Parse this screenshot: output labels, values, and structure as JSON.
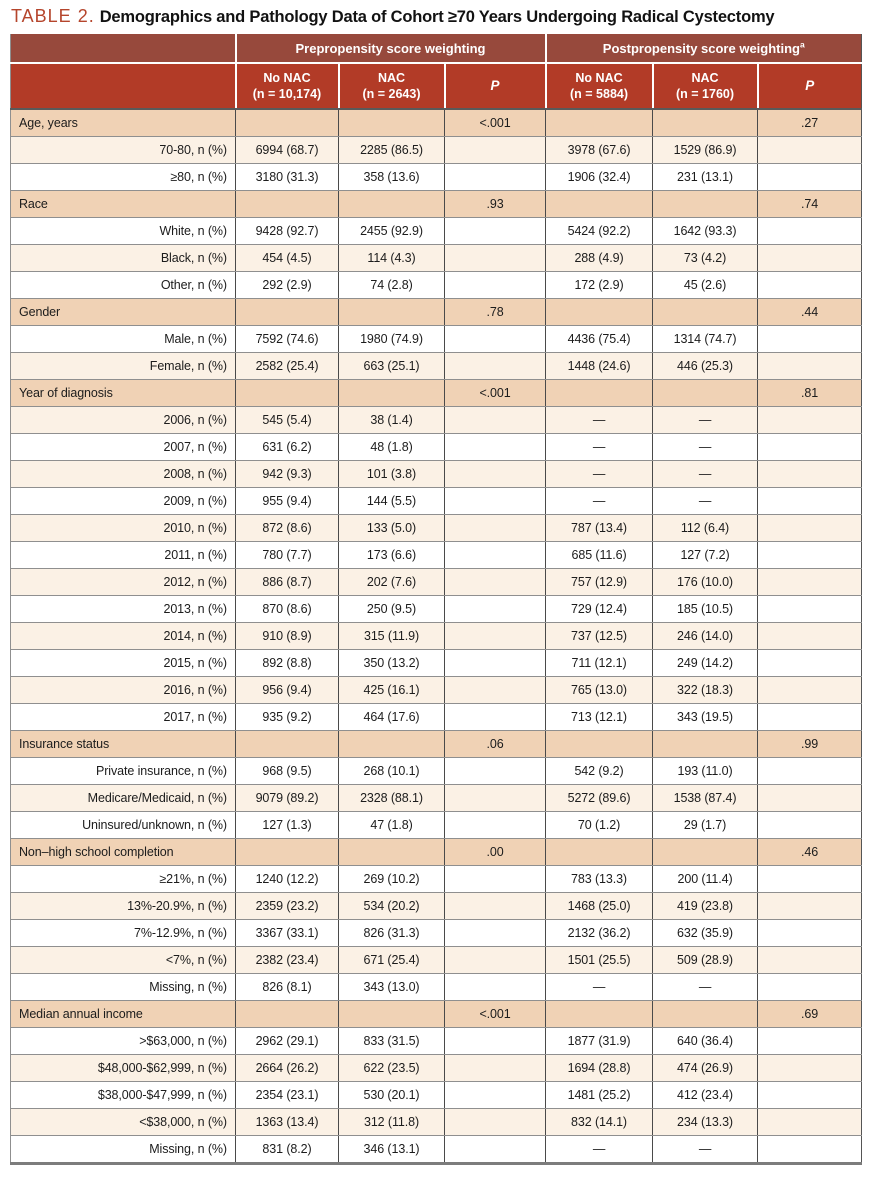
{
  "title": {
    "label": "TABLE 2.",
    "text": "Demographics and Pathology Data of Cohort ≥70 Years Undergoing Radical Cystectomy"
  },
  "colors": {
    "header_group_bg": "#97493c",
    "header_column_bg": "#b23b27",
    "category_row_bg": "#f0d2b5",
    "stripe_row_bg": "#fbf1e5",
    "title_accent": "#b5452c"
  },
  "header": {
    "groups": [
      {
        "label": "Prepropensity score weighting",
        "sup": ""
      },
      {
        "label": "Postpropensity score weighting",
        "sup": "a"
      }
    ],
    "columns": [
      {
        "line1": "No NAC",
        "line2": "(n = 10,174)"
      },
      {
        "line1": "NAC",
        "line2": "(n = 2643)"
      },
      {
        "line1": "P",
        "line2": ""
      },
      {
        "line1": "No NAC",
        "line2": "(n = 5884)"
      },
      {
        "line1": "NAC",
        "line2": "(n = 1760)"
      },
      {
        "line1": "P",
        "line2": ""
      }
    ]
  },
  "rows": [
    {
      "cat": true,
      "label": "Age, years",
      "cells": [
        "",
        "",
        "<.001",
        "",
        "",
        ".27"
      ]
    },
    {
      "cat": false,
      "label": "70-80, n (%)",
      "cells": [
        "6994 (68.7)",
        "2285 (86.5)",
        "",
        "3978 (67.6)",
        "1529 (86.9)",
        ""
      ]
    },
    {
      "cat": false,
      "label": "≥80, n (%)",
      "cells": [
        "3180 (31.3)",
        "358 (13.6)",
        "",
        "1906 (32.4)",
        "231 (13.1)",
        ""
      ]
    },
    {
      "cat": true,
      "label": "Race",
      "cells": [
        "",
        "",
        ".93",
        "",
        "",
        ".74"
      ]
    },
    {
      "cat": false,
      "label": "White, n (%)",
      "cells": [
        "9428 (92.7)",
        "2455 (92.9)",
        "",
        "5424 (92.2)",
        "1642 (93.3)",
        ""
      ]
    },
    {
      "cat": false,
      "label": "Black, n (%)",
      "cells": [
        "454 (4.5)",
        "114 (4.3)",
        "",
        "288 (4.9)",
        "73 (4.2)",
        ""
      ]
    },
    {
      "cat": false,
      "label": "Other, n (%)",
      "cells": [
        "292 (2.9)",
        "74 (2.8)",
        "",
        "172 (2.9)",
        "45 (2.6)",
        ""
      ]
    },
    {
      "cat": true,
      "label": "Gender",
      "cells": [
        "",
        "",
        ".78",
        "",
        "",
        ".44"
      ]
    },
    {
      "cat": false,
      "label": "Male, n (%)",
      "cells": [
        "7592 (74.6)",
        "1980 (74.9)",
        "",
        "4436 (75.4)",
        "1314 (74.7)",
        ""
      ]
    },
    {
      "cat": false,
      "label": "Female, n (%)",
      "cells": [
        "2582 (25.4)",
        "663 (25.1)",
        "",
        "1448 (24.6)",
        "446 (25.3)",
        ""
      ]
    },
    {
      "cat": true,
      "label": "Year of diagnosis",
      "cells": [
        "",
        "",
        "<.001",
        "",
        "",
        ".81"
      ]
    },
    {
      "cat": false,
      "label": "2006, n (%)",
      "cells": [
        "545 (5.4)",
        "38 (1.4)",
        "",
        "—",
        "—",
        ""
      ]
    },
    {
      "cat": false,
      "label": "2007, n (%)",
      "cells": [
        "631 (6.2)",
        "48 (1.8)",
        "",
        "—",
        "—",
        ""
      ]
    },
    {
      "cat": false,
      "label": "2008, n (%)",
      "cells": [
        "942 (9.3)",
        "101 (3.8)",
        "",
        "—",
        "—",
        ""
      ]
    },
    {
      "cat": false,
      "label": "2009, n (%)",
      "cells": [
        "955 (9.4)",
        "144 (5.5)",
        "",
        "—",
        "—",
        ""
      ]
    },
    {
      "cat": false,
      "label": "2010, n (%)",
      "cells": [
        "872 (8.6)",
        "133 (5.0)",
        "",
        "787 (13.4)",
        "112 (6.4)",
        ""
      ]
    },
    {
      "cat": false,
      "label": "2011, n (%)",
      "cells": [
        "780 (7.7)",
        "173 (6.6)",
        "",
        "685 (11.6)",
        "127 (7.2)",
        ""
      ]
    },
    {
      "cat": false,
      "label": "2012, n (%)",
      "cells": [
        "886 (8.7)",
        "202 (7.6)",
        "",
        "757 (12.9)",
        "176 (10.0)",
        ""
      ]
    },
    {
      "cat": false,
      "label": "2013, n (%)",
      "cells": [
        "870 (8.6)",
        "250 (9.5)",
        "",
        "729 (12.4)",
        "185 (10.5)",
        ""
      ]
    },
    {
      "cat": false,
      "label": "2014, n (%)",
      "cells": [
        "910 (8.9)",
        "315 (11.9)",
        "",
        "737 (12.5)",
        "246 (14.0)",
        ""
      ]
    },
    {
      "cat": false,
      "label": "2015, n (%)",
      "cells": [
        "892 (8.8)",
        "350 (13.2)",
        "",
        "711 (12.1)",
        "249 (14.2)",
        ""
      ]
    },
    {
      "cat": false,
      "label": "2016, n (%)",
      "cells": [
        "956 (9.4)",
        "425 (16.1)",
        "",
        "765 (13.0)",
        "322 (18.3)",
        ""
      ]
    },
    {
      "cat": false,
      "label": "2017, n (%)",
      "cells": [
        "935 (9.2)",
        "464 (17.6)",
        "",
        "713 (12.1)",
        "343 (19.5)",
        ""
      ]
    },
    {
      "cat": true,
      "label": "Insurance status",
      "cells": [
        "",
        "",
        ".06",
        "",
        "",
        ".99"
      ]
    },
    {
      "cat": false,
      "label": "Private insurance, n (%)",
      "cells": [
        "968 (9.5)",
        "268 (10.1)",
        "",
        "542 (9.2)",
        "193 (11.0)",
        ""
      ]
    },
    {
      "cat": false,
      "label": "Medicare/Medicaid, n (%)",
      "cells": [
        "9079 (89.2)",
        "2328 (88.1)",
        "",
        "5272 (89.6)",
        "1538 (87.4)",
        ""
      ]
    },
    {
      "cat": false,
      "label": "Uninsured/unknown, n (%)",
      "cells": [
        "127 (1.3)",
        "47 (1.8)",
        "",
        "70 (1.2)",
        "29 (1.7)",
        ""
      ]
    },
    {
      "cat": true,
      "label": "Non–high school completion",
      "cells": [
        "",
        "",
        ".00",
        "",
        "",
        ".46"
      ]
    },
    {
      "cat": false,
      "label": "≥21%, n (%)",
      "cells": [
        "1240 (12.2)",
        "269 (10.2)",
        "",
        "783 (13.3)",
        "200 (11.4)",
        ""
      ]
    },
    {
      "cat": false,
      "label": "13%-20.9%, n (%)",
      "cells": [
        "2359 (23.2)",
        "534 (20.2)",
        "",
        "1468 (25.0)",
        "419 (23.8)",
        ""
      ]
    },
    {
      "cat": false,
      "label": "7%-12.9%, n (%)",
      "cells": [
        "3367 (33.1)",
        "826 (31.3)",
        "",
        "2132 (36.2)",
        "632 (35.9)",
        ""
      ]
    },
    {
      "cat": false,
      "label": "<7%, n (%)",
      "cells": [
        "2382 (23.4)",
        "671 (25.4)",
        "",
        "1501 (25.5)",
        "509 (28.9)",
        ""
      ]
    },
    {
      "cat": false,
      "label": "Missing, n (%)",
      "cells": [
        "826 (8.1)",
        "343 (13.0)",
        "",
        "—",
        "—",
        ""
      ]
    },
    {
      "cat": true,
      "label": "Median annual income",
      "cells": [
        "",
        "",
        "<.001",
        "",
        "",
        ".69"
      ]
    },
    {
      "cat": false,
      "label": ">$63,000, n (%)",
      "cells": [
        "2962 (29.1)",
        "833 (31.5)",
        "",
        "1877 (31.9)",
        "640 (36.4)",
        ""
      ]
    },
    {
      "cat": false,
      "label": "$48,000-$62,999, n (%)",
      "cells": [
        "2664 (26.2)",
        "622 (23.5)",
        "",
        "1694 (28.8)",
        "474 (26.9)",
        ""
      ]
    },
    {
      "cat": false,
      "label": "$38,000-$47,999, n (%)",
      "cells": [
        "2354 (23.1)",
        "530 (20.1)",
        "",
        "1481 (25.2)",
        "412 (23.4)",
        ""
      ]
    },
    {
      "cat": false,
      "label": "<$38,000, n (%)",
      "cells": [
        "1363 (13.4)",
        "312 (11.8)",
        "",
        "832 (14.1)",
        "234 (13.3)",
        ""
      ]
    },
    {
      "cat": false,
      "label": "Missing, n (%)",
      "cells": [
        "831 (8.2)",
        "346 (13.1)",
        "",
        "—",
        "—",
        ""
      ]
    }
  ]
}
